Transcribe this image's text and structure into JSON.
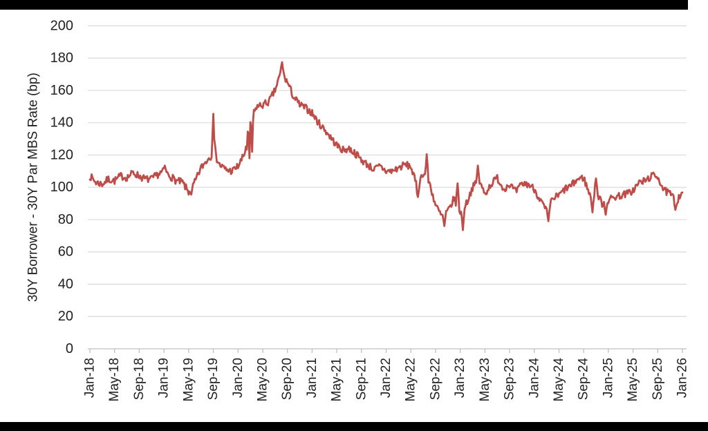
{
  "window": {
    "background": "#FFFFFF",
    "top_bar_color": "#000000",
    "bottom_bar_color": "#000000"
  },
  "chart_data": {
    "type": "line",
    "title": "",
    "xlabel": "",
    "ylabel": "30Y Borrower - 30Y Par MBS Rate (bp)",
    "ylim": [
      0,
      200
    ],
    "ytick_labels": [
      "0",
      "20",
      "40",
      "60",
      "80",
      "100",
      "120",
      "140",
      "160",
      "180",
      "200"
    ],
    "xtick_labels": [
      "Jan-18",
      "May-18",
      "Sep-18",
      "Jan-19",
      "May-19",
      "Sep-19",
      "Jan-20",
      "May-20",
      "Sep-20",
      "Jan-21",
      "May-21",
      "Sep-21",
      "Jan-22",
      "May-22",
      "Sep-22",
      "Jan-23",
      "May-23",
      "Sep-23",
      "Jan-24",
      "May-24",
      "Sep-24",
      "Jan-25",
      "May-25",
      "Sep-25",
      "Jan-26"
    ],
    "grid": "horizontal-only",
    "legend": "none",
    "line_color": "#BE4C48",
    "grid_color": "#D9D9D9",
    "axis_color": "#BFBFBF",
    "text_color": "#212121",
    "series_name": "30Y Borrower - 30Y Par MBS Rate",
    "monthly_values_start": "Jan-18",
    "monthly_values": [
      107,
      103,
      102,
      105,
      104,
      107,
      106,
      109,
      107,
      105,
      105,
      108,
      110,
      107,
      104,
      103,
      97,
      103,
      112,
      117,
      121,
      114,
      111,
      110,
      113,
      120,
      138,
      150,
      151,
      153,
      160,
      172,
      165,
      156,
      151,
      149,
      146,
      140,
      136,
      131,
      126,
      123,
      124,
      121,
      117,
      114,
      111,
      113,
      110,
      110,
      112,
      114,
      113,
      100,
      109,
      103,
      89,
      82,
      85,
      93,
      85,
      90,
      100,
      104,
      96,
      102,
      106,
      99,
      102,
      97,
      102,
      102,
      99,
      92,
      85,
      93,
      95,
      99,
      101,
      105,
      106,
      95,
      97,
      90,
      92,
      94,
      95,
      96,
      98,
      103,
      104,
      107,
      107,
      98,
      96,
      91,
      98
    ],
    "spike_points": [
      {
        "t": 12.2,
        "v": 113.5
      },
      {
        "t": 16.4,
        "v": 95.5
      },
      {
        "t": 20.05,
        "v": 145.5
      },
      {
        "t": 20.35,
        "v": 126
      },
      {
        "t": 25.5,
        "v": 120
      },
      {
        "t": 25.7,
        "v": 149
      },
      {
        "t": 25.9,
        "v": 118
      },
      {
        "t": 26.1,
        "v": 152
      },
      {
        "t": 26.3,
        "v": 122
      },
      {
        "t": 26.5,
        "v": 148
      },
      {
        "t": 31.1,
        "v": 177.5
      },
      {
        "t": 53.2,
        "v": 94
      },
      {
        "t": 54.5,
        "v": 120.5
      },
      {
        "t": 57.4,
        "v": 76
      },
      {
        "t": 59.6,
        "v": 102.5
      },
      {
        "t": 60.4,
        "v": 73.5
      },
      {
        "t": 62.9,
        "v": 113.5
      },
      {
        "t": 74.3,
        "v": 79
      },
      {
        "t": 81.4,
        "v": 84.5
      },
      {
        "t": 82.0,
        "v": 105.5
      },
      {
        "t": 83.6,
        "v": 83
      },
      {
        "t": 94.8,
        "v": 86
      }
    ],
    "noise_bp": 2.3
  }
}
